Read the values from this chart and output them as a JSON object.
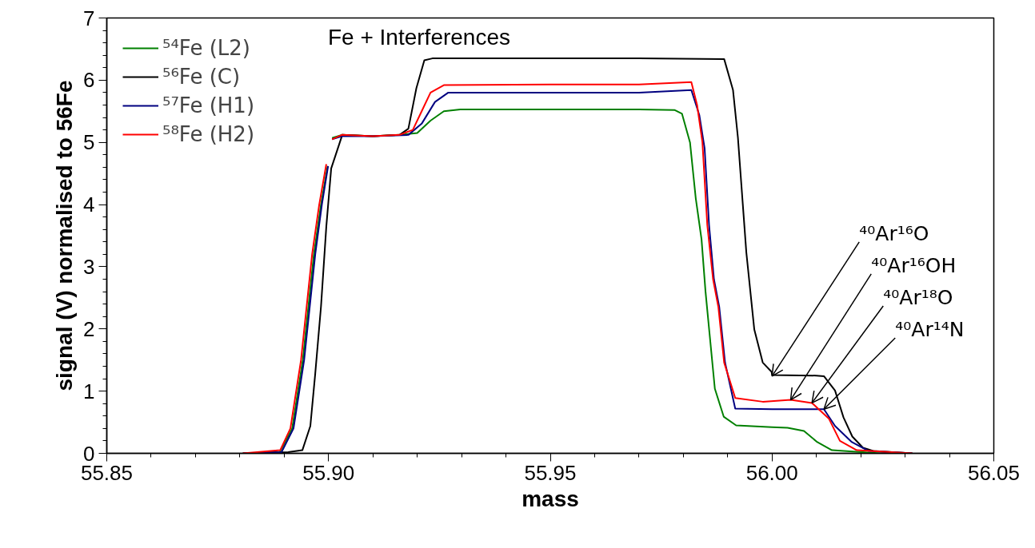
{
  "chart_data": {
    "type": "line",
    "xlabel": "mass",
    "ylabel": "signal (V) normalised to 56Fe",
    "xlim": [
      55.85,
      56.05
    ],
    "ylim": [
      0,
      7
    ],
    "xticks": [
      {
        "value": 55.85,
        "label": "55.85"
      },
      {
        "value": 55.9,
        "label": "55.90"
      },
      {
        "value": 55.95,
        "label": "55.95"
      },
      {
        "value": 56.0,
        "label": "56.00"
      },
      {
        "value": 56.05,
        "label": "56.05"
      }
    ],
    "yticks": [
      0,
      1,
      2,
      3,
      4,
      5,
      6,
      7
    ],
    "grid": false,
    "legend": "top left",
    "line_style": "solid",
    "annotations": [
      "Fe + Interferences",
      {
        "text": "⁴⁰Ar¹⁶O",
        "x": 56.0,
        "y": 1.24
      },
      {
        "text": "⁴⁰Ar¹⁶OH",
        "x": 56.0042,
        "y": 0.86
      },
      {
        "text": "⁴⁰Ar¹⁸O",
        "x": 56.009,
        "y": 0.81
      },
      {
        "text": "⁴⁰Ar¹⁴N",
        "x": 56.0117,
        "y": 0.71
      }
    ],
    "series": [
      {
        "name": "⁵⁴Fe (L2)",
        "color": "#008000",
        "x": [
          55.8807,
          55.889,
          55.8918,
          55.8942,
          55.8967,
          55.8983,
          55.8998,
          55.8999,
          55.9008,
          55.903,
          55.91,
          55.916,
          55.92,
          55.923,
          55.926,
          55.9297,
          55.95,
          55.97,
          55.978,
          55.9797,
          55.9815,
          55.9828,
          55.9841,
          55.985,
          55.9859,
          55.9871,
          55.9891,
          55.9919,
          56.0,
          56.0035,
          56.0072,
          56.0102,
          56.0135,
          56.0244,
          56.0316
        ],
        "values": [
          0,
          0.02,
          0.4,
          1.5,
          3.2,
          4.0,
          4.62,
          null,
          5.07,
          5.12,
          5.1,
          5.12,
          5.15,
          5.35,
          5.5,
          5.53,
          5.53,
          5.53,
          5.52,
          5.46,
          5.0,
          4.1,
          3.44,
          2.6,
          1.93,
          1.04,
          0.59,
          0.45,
          0.42,
          0.41,
          0.36,
          0.18,
          0.05,
          0,
          0
        ]
      },
      {
        "name": "⁵⁶Fe (C)",
        "color": "#000000",
        "x": [
          55.8807,
          55.8909,
          55.8941,
          55.8959,
          55.897,
          55.8983,
          55.8995,
          55.9006,
          55.9031,
          55.91,
          55.916,
          55.918,
          55.9198,
          55.9216,
          55.9234,
          55.95,
          55.97,
          55.9892,
          55.9912,
          55.9923,
          55.9942,
          55.996,
          55.9979,
          55.9999,
          56.0,
          56.01,
          56.0117,
          56.0142,
          56.0161,
          56.0181,
          56.0205,
          56.0228,
          56.0316
        ],
        "values": [
          0,
          0.02,
          0.05,
          0.44,
          1.28,
          2.36,
          3.65,
          4.58,
          5.12,
          5.1,
          5.12,
          5.22,
          5.87,
          6.32,
          6.35,
          6.35,
          6.35,
          6.34,
          5.84,
          5.08,
          3.23,
          1.99,
          1.46,
          1.31,
          1.26,
          1.25,
          1.24,
          1.01,
          0.58,
          0.27,
          0.09,
          0.04,
          0
        ]
      },
      {
        "name": "⁵⁷Fe (H1)",
        "color": "#000080",
        "x": [
          55.8807,
          55.8894,
          55.8921,
          55.8945,
          55.897,
          55.8985,
          55.8999,
          55.9,
          55.9008,
          55.903,
          55.91,
          55.918,
          55.921,
          55.924,
          55.927,
          55.95,
          55.97,
          55.9818,
          55.9836,
          55.9848,
          55.9858,
          55.9869,
          55.9881,
          55.9894,
          55.9917,
          56.0,
          56.0117,
          56.0142,
          56.018,
          56.0217,
          56.0316
        ],
        "values": [
          0,
          0.02,
          0.4,
          1.5,
          3.2,
          4.0,
          4.62,
          null,
          5.05,
          5.1,
          5.1,
          5.12,
          5.3,
          5.65,
          5.8,
          5.8,
          5.8,
          5.84,
          5.44,
          4.9,
          3.67,
          2.8,
          2.35,
          1.46,
          0.72,
          0.71,
          0.71,
          0.44,
          0.18,
          0.04,
          0
        ]
      },
      {
        "name": "⁵⁸Fe (H2)",
        "color": "#ff0000",
        "x": [
          55.8807,
          55.8891,
          55.8914,
          55.8938,
          55.8963,
          55.8979,
          55.8995,
          55.8996,
          55.9008,
          55.903,
          55.91,
          55.916,
          55.919,
          55.921,
          55.923,
          55.926,
          55.95,
          55.97,
          55.9818,
          55.9831,
          55.9843,
          55.9854,
          55.9867,
          55.9879,
          55.9892,
          55.9917,
          55.9979,
          56.0042,
          56.009,
          56.0128,
          56.0153,
          56.0191,
          56.0316
        ],
        "values": [
          0,
          0.05,
          0.4,
          1.5,
          3.2,
          4.0,
          4.65,
          null,
          5.05,
          5.12,
          5.1,
          5.12,
          5.2,
          5.5,
          5.8,
          5.92,
          5.93,
          5.93,
          5.97,
          5.6,
          5.0,
          3.67,
          2.8,
          2.35,
          1.46,
          0.89,
          0.83,
          0.86,
          0.81,
          0.56,
          0.2,
          0.05,
          0
        ]
      }
    ]
  }
}
